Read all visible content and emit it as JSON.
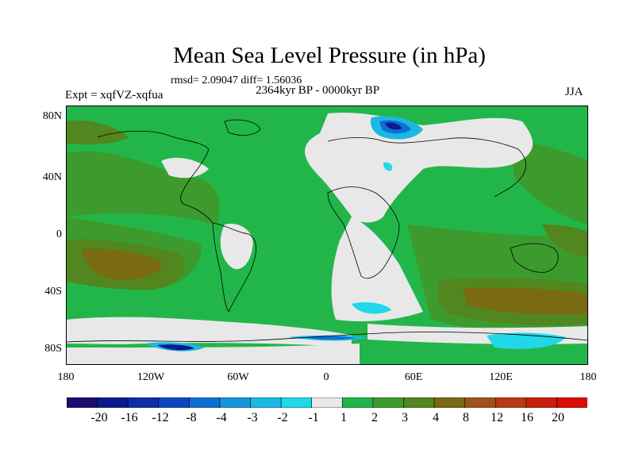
{
  "title": "Mean Sea Level Pressure (in hPa)",
  "stats": "rmsd= 2.09047 diff= 1.56036",
  "experiment": "Expt = xqfVZ-xqfua",
  "period": "2364kyr BP - 0000kyr BP",
  "season": "JJA",
  "lat_labels": [
    "80N",
    "40N",
    "0",
    "40S",
    "80S"
  ],
  "lon_labels": [
    "180",
    "120W",
    "60W",
    "0",
    "60E",
    "120E",
    "180"
  ],
  "colorbar": {
    "labels": [
      "-20",
      "-16",
      "-12",
      "-8",
      "-4",
      "-3",
      "-2",
      "-1",
      "1",
      "2",
      "3",
      "4",
      "8",
      "12",
      "16",
      "20"
    ],
    "colors": [
      "#1a0d6e",
      "#0b1a8c",
      "#0d2da8",
      "#0b47c0",
      "#0d6fd4",
      "#1596d8",
      "#1ab8e2",
      "#20d8ea",
      "#e8e8e8",
      "#22b64a",
      "#3d9a2c",
      "#52861e",
      "#7a6a12",
      "#a0521a",
      "#b83a14",
      "#c8200e",
      "#dc0a08"
    ]
  },
  "palette": {
    "neutral": "#e8e8e8",
    "green": "#22b64a",
    "darkgreen": "#3d9a2c",
    "olive": "#52861e",
    "brown": "#7a6a12",
    "cyan": "#20d8ea",
    "lightblue": "#1ab8e2",
    "blue": "#0d6fd4",
    "navy": "#0b1a8c"
  }
}
